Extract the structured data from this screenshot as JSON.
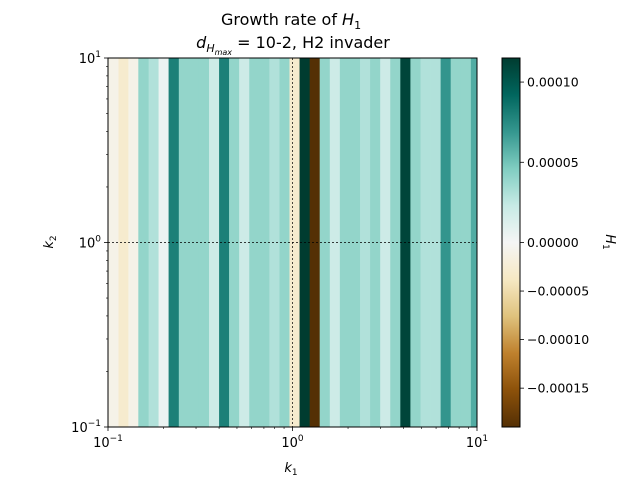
{
  "chart_data": {
    "type": "heatmap",
    "title_line1_prefix": "Growth rate of ",
    "title_line1_var": "H",
    "title_line1_sub": "1",
    "title_line2_var": "d",
    "title_line2_sub_main": "H",
    "title_line2_sub_sub": "max",
    "title_line2_rest": " = 10-2, H2 invader",
    "xlabel_var": "k",
    "xlabel_sub": "1",
    "ylabel_var": "k",
    "ylabel_sub": "2",
    "x_scale": "log",
    "y_scale": "log",
    "xlim": [
      0.1,
      10
    ],
    "ylim": [
      0.1,
      10
    ],
    "x_ticks": [
      {
        "value": 0.1,
        "base": "10",
        "exp": "−1"
      },
      {
        "value": 1,
        "base": "10",
        "exp": "0"
      },
      {
        "value": 10,
        "base": "10",
        "exp": "1"
      }
    ],
    "y_ticks": [
      {
        "value": 0.1,
        "base": "10",
        "exp": "−1"
      },
      {
        "value": 1,
        "base": "10",
        "exp": "0"
      },
      {
        "value": 10,
        "base": "10",
        "exp": "1"
      }
    ],
    "reference_lines": {
      "x": [
        1
      ],
      "y": [
        1,
        10
      ],
      "style": "dashed-black"
    },
    "colorbar": {
      "label_var": "H",
      "label_sub": "1",
      "colormap": "BrBG",
      "vmin": -0.00019,
      "vmax": 0.000115,
      "ticks": [
        {
          "value": 0.0001,
          "label": "0.00010"
        },
        {
          "value": 5e-05,
          "label": "0.00005"
        },
        {
          "value": 0.0,
          "label": "0.00000"
        },
        {
          "value": -5e-05,
          "label": "−0.00005"
        },
        {
          "value": -0.0001,
          "label": "−0.00010"
        },
        {
          "value": -0.00015,
          "label": "−0.00015"
        }
      ]
    },
    "k1_columns": [
      0.1,
      0.114,
      0.129,
      0.146,
      0.166,
      0.188,
      0.213,
      0.242,
      0.274,
      0.311,
      0.353,
      0.4,
      0.453,
      0.514,
      0.583,
      0.661,
      0.749,
      0.85,
      0.963,
      1.092,
      1.239,
      1.404,
      1.593,
      1.806,
      2.048,
      2.323,
      2.634,
      2.987,
      3.387,
      3.841,
      4.356,
      4.939,
      5.601,
      6.351,
      7.202,
      8.168,
      9.262
    ],
    "values": [
      -1e-05,
      -3e-05,
      -1e-05,
      4e-05,
      3e-05,
      5e-06,
      8e-05,
      4e-05,
      4e-05,
      4e-05,
      2e-05,
      8e-05,
      4e-05,
      2e-05,
      4e-05,
      4e-05,
      3e-05,
      4e-05,
      -3e-05,
      0.000115,
      -0.00019,
      4e-05,
      2e-05,
      4e-05,
      4e-05,
      3e-05,
      4e-05,
      2e-05,
      4e-05,
      0.00011,
      4e-05,
      3e-05,
      3e-05,
      7e-05,
      4e-05,
      4e-05,
      6e-05
    ]
  }
}
